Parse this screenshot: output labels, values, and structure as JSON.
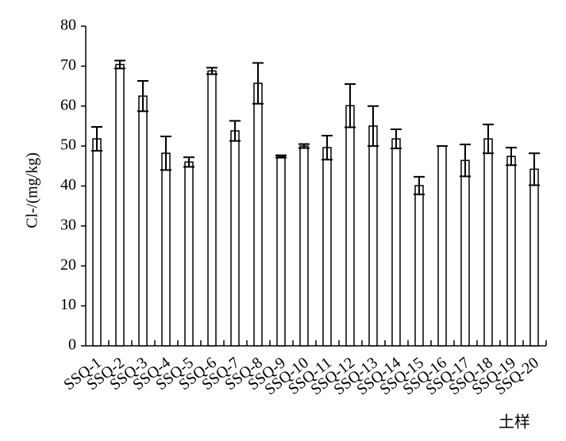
{
  "chart_data": {
    "type": "bar",
    "y_label": "Cl-/(mg/kg)",
    "x_label": "土样",
    "categories": [
      "SSQ-1",
      "SSQ-2",
      "SSQ-3",
      "SSQ-4",
      "SSQ-5",
      "SSQ-6",
      "SSQ-7",
      "SSQ-8",
      "SSQ-9",
      "SSQ-10",
      "SSQ-11",
      "SSQ-12",
      "SSQ-13",
      "SSQ-14",
      "SSQ-15",
      "SSQ-16",
      "SSQ-17",
      "SSQ-18",
      "SSQ-19",
      "SSQ-20"
    ],
    "values": [
      51.8,
      70.4,
      62.5,
      48.2,
      46,
      68.8,
      53.8,
      65.7,
      47.4,
      50,
      49.6,
      60.1,
      55,
      51.8,
      40.1,
      50,
      46.4,
      51.8,
      47.4,
      44.2
    ],
    "errors": [
      3,
      1,
      3.8,
      4.2,
      1.2,
      0.8,
      2.5,
      5.1,
      0.3,
      0.5,
      3,
      5.4,
      5,
      2.4,
      2.2,
      0,
      4,
      3.6,
      2.2,
      4
    ],
    "color": "#ffffff",
    "ylim": [
      0,
      80
    ],
    "yticks": [
      0,
      10,
      20,
      30,
      40,
      50,
      60,
      70,
      80
    ]
  }
}
